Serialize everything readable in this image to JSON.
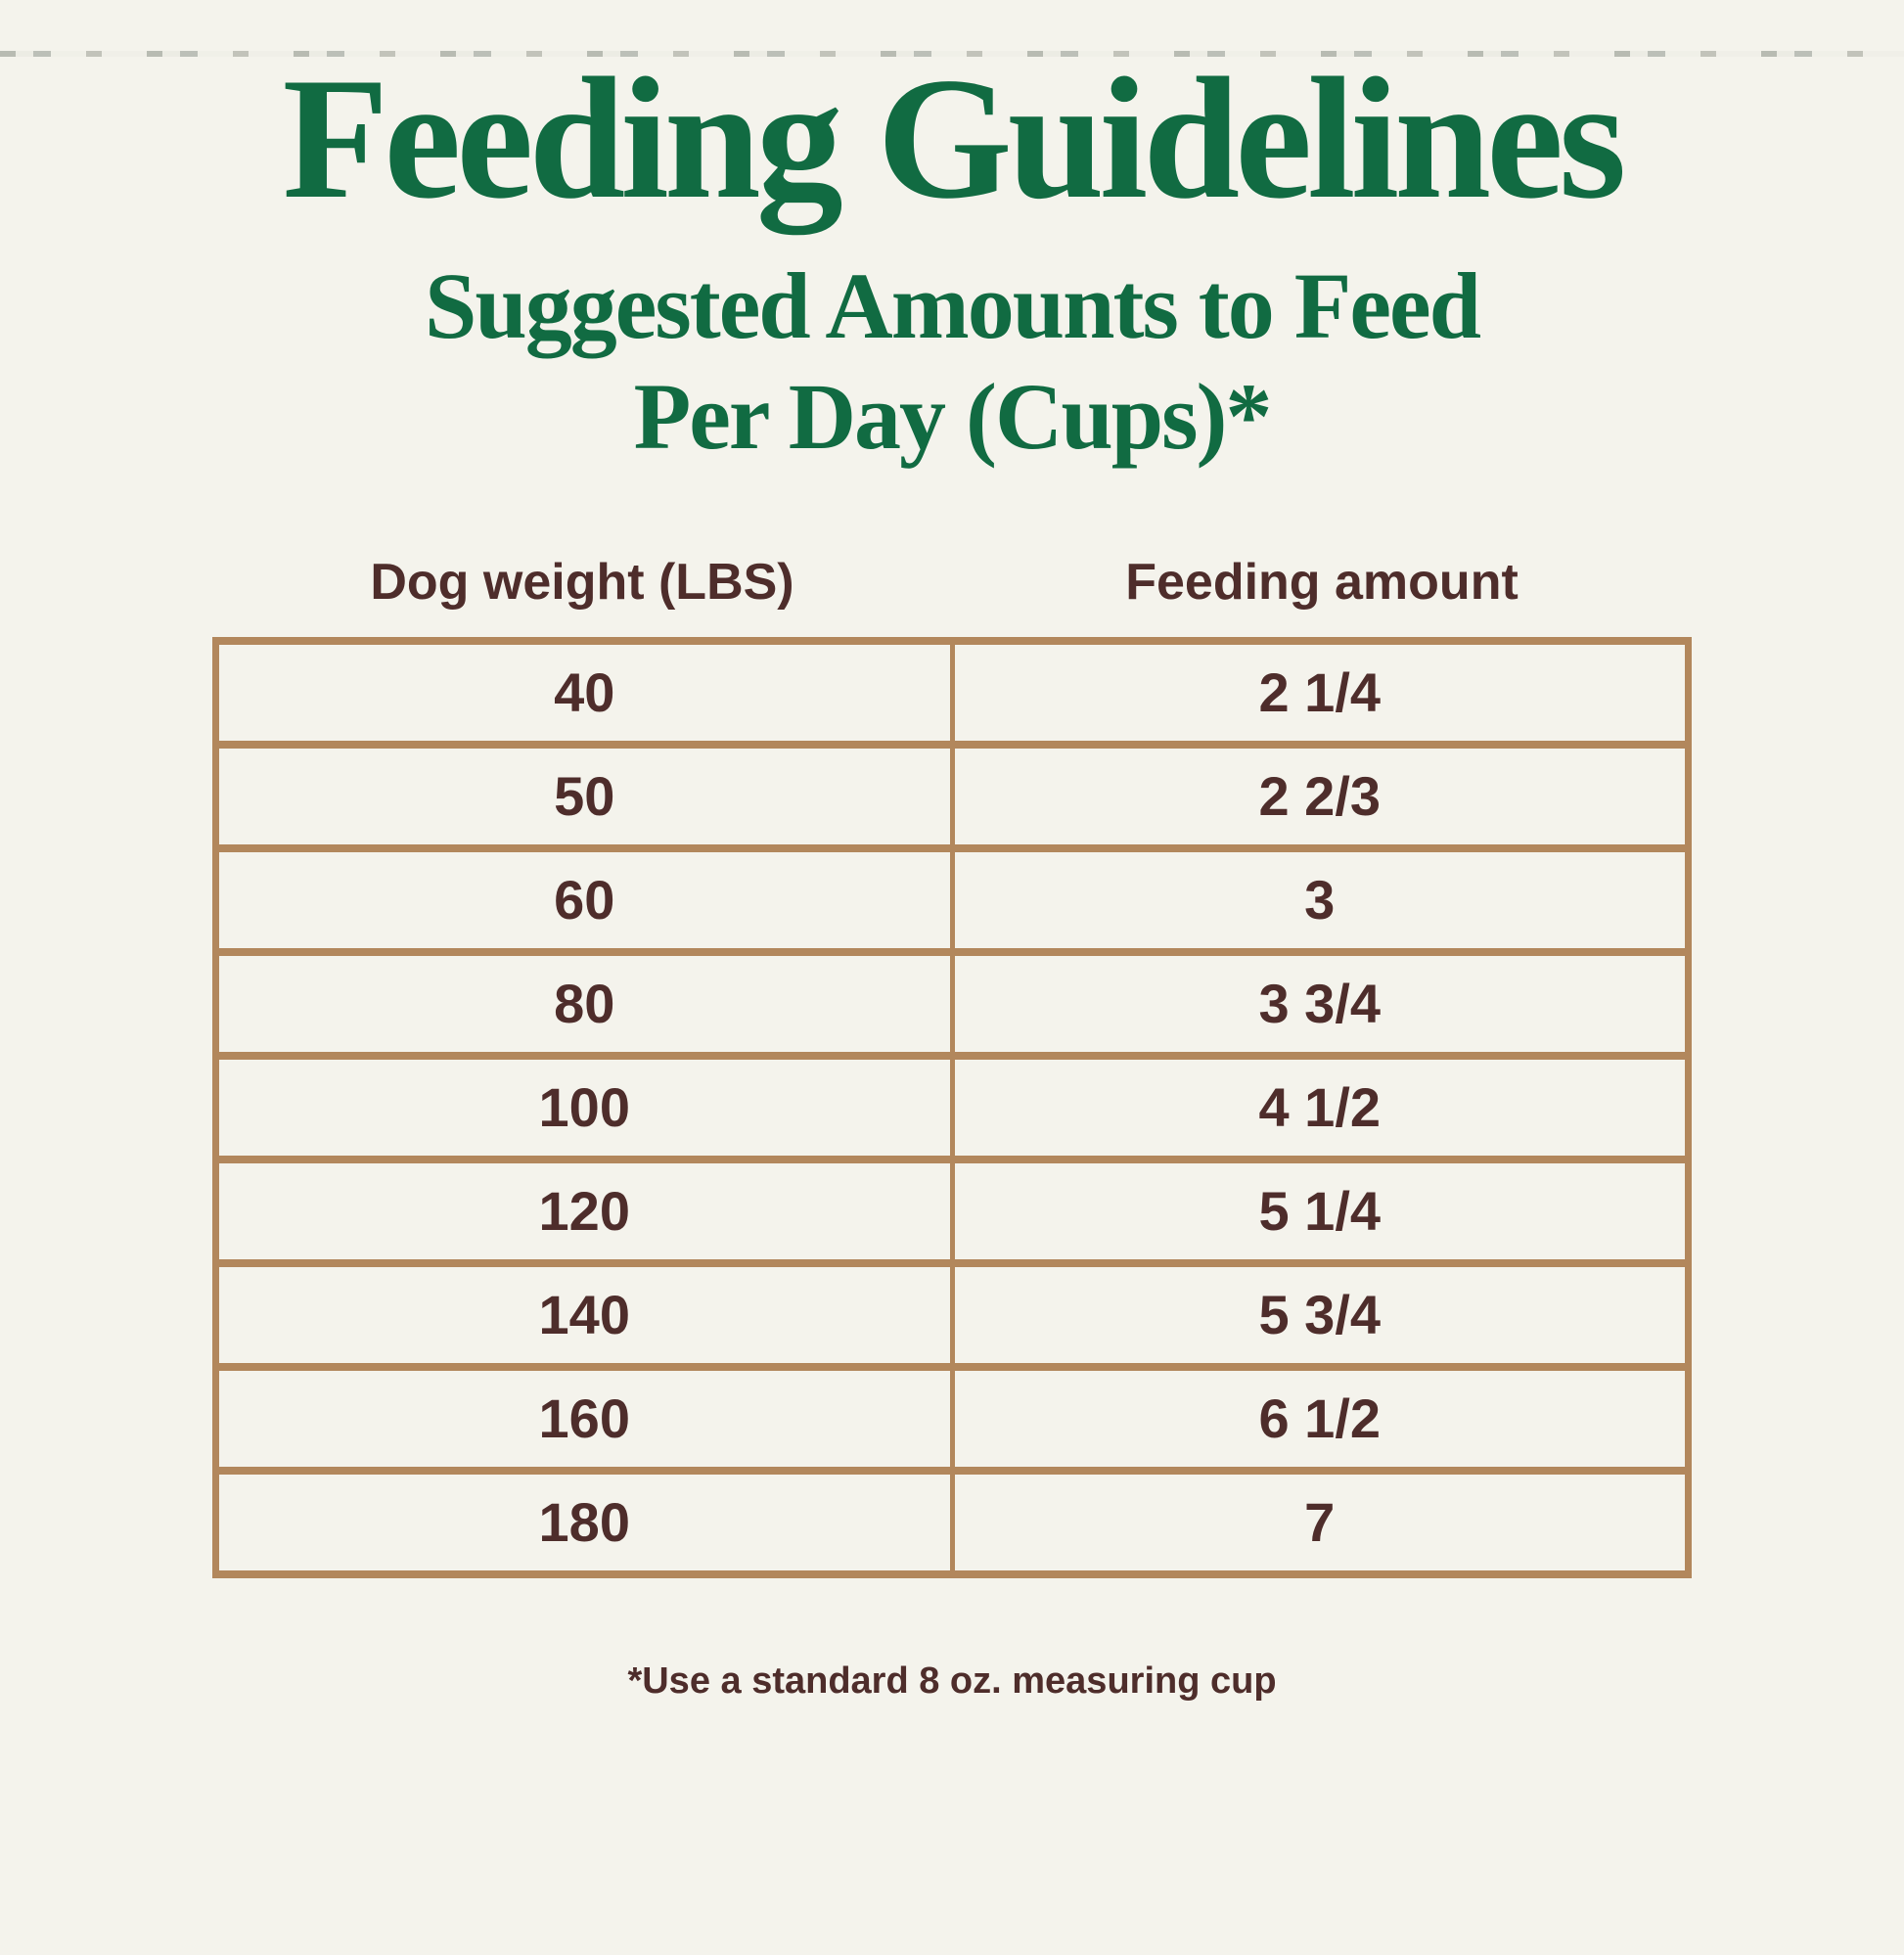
{
  "chart_data": {
    "type": "table",
    "title": "Feeding Guidelines",
    "subtitle_line1": "Suggested Amounts to Feed",
    "subtitle_line2": "Per Day (Cups)*",
    "columns": [
      "Dog weight (LBS)",
      "Feeding amount"
    ],
    "rows": [
      [
        "40",
        "2 1/4"
      ],
      [
        "50",
        "2 2/3"
      ],
      [
        "60",
        "3"
      ],
      [
        "80",
        "3 3/4"
      ],
      [
        "100",
        "4 1/2"
      ],
      [
        "120",
        "5 1/4"
      ],
      [
        "140",
        "5 3/4"
      ],
      [
        "160",
        "6 1/2"
      ],
      [
        "180",
        "7"
      ]
    ],
    "footnote": "*Use a standard 8 oz. measuring cup"
  },
  "colors": {
    "green": "#116b42",
    "brown": "#4e2d2b",
    "border": "#b2875c",
    "background": "#f4f3ec"
  }
}
